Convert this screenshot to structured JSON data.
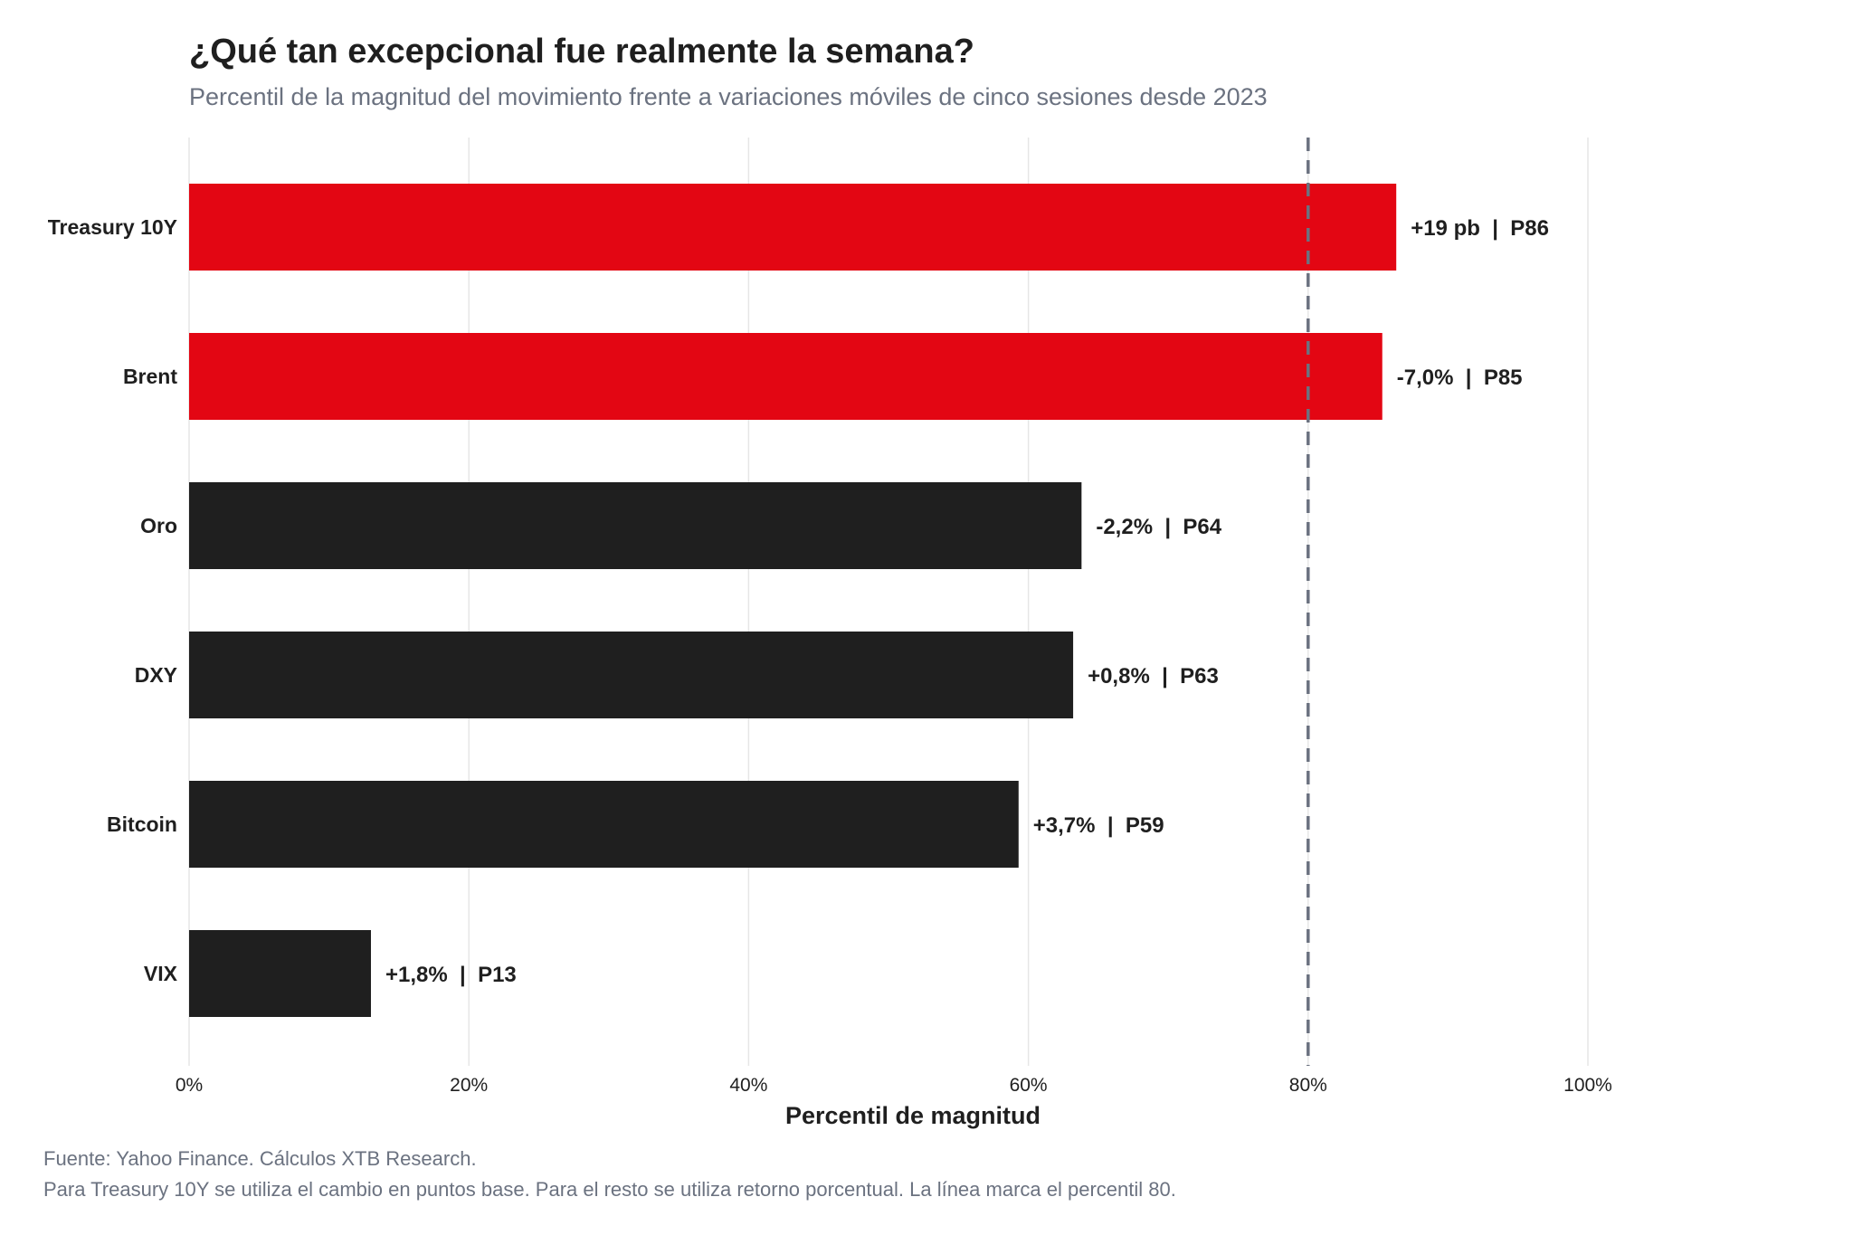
{
  "chart_data": {
    "type": "bar",
    "orientation": "horizontal",
    "title": "¿Qué tan excepcional fue realmente la semana?",
    "subtitle": "Percentil de la magnitud del movimiento frente a variaciones móviles de cinco sesiones desde 2023",
    "xlabel": "Percentil de magnitud",
    "xlim": [
      0,
      100
    ],
    "xticks": [
      0,
      20,
      40,
      60,
      80,
      100
    ],
    "xtick_labels": [
      "0%",
      "20%",
      "40%",
      "60%",
      "80%",
      "100%"
    ],
    "grid": "vertical",
    "reference_line": {
      "x": 80,
      "style": "dashed",
      "color": "#6b7280"
    },
    "categories": [
      "Treasury 10Y",
      "Brent",
      "Oro",
      "DXY",
      "Bitcoin",
      "VIX"
    ],
    "values": [
      86.3,
      85.3,
      63.8,
      63.2,
      59.3,
      13.0
    ],
    "labels": [
      "+19 pb  |  P86",
      "-7,0%  |  P85",
      "-2,2%  |  P64",
      "+0,8%  |  P63",
      "+3,7%  |  P59",
      "+1,8%  |  P13"
    ],
    "highlight_color": "#e30613",
    "base_color": "#1f1f1f",
    "bar_colors": [
      "#e30613",
      "#e30613",
      "#1f1f1f",
      "#1f1f1f",
      "#1f1f1f",
      "#1f1f1f"
    ],
    "source": "Fuente: Yahoo Finance. Cálculos XTB Research.",
    "note": "Para Treasury 10Y se utiliza el cambio en puntos base. Para el resto se utiliza retorno porcentual. La línea marca el percentil 80."
  }
}
